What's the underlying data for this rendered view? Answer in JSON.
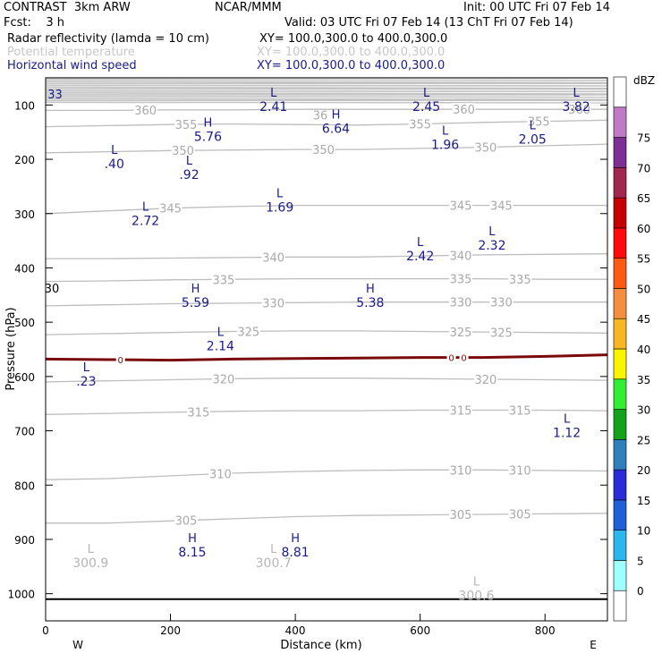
{
  "header": {
    "model": "CONTRAST  3km ARW",
    "org": "NCAR/MMM",
    "init": "Init: 00 UTC Fri 07 Feb 14",
    "fcst": "Fcst:    3 h",
    "valid": "Valid: 03 UTC Fri 07 Feb 14 (13 ChT Fri 07 Feb 14)",
    "fields": [
      {
        "name": "Radar reflectivity (lamda = 10 cm)",
        "xy": "XY= 100.0,300.0 to 400.0,300.0",
        "color": "#000000"
      },
      {
        "name": "Potential temperature",
        "xy": "XY= 100.0,300.0 to 400.0,300.0",
        "color": "#c8c8c8"
      },
      {
        "name": "Horizontal wind speed",
        "xy": "XY= 100.0,300.0 to 400.0,300.0",
        "color": "#1a1a8a"
      }
    ]
  },
  "chart_data": {
    "type": "cross-section",
    "xlabel": "Distance (km)",
    "ylabel": "Pressure (hPa)",
    "xlim": [
      0,
      900
    ],
    "ylim": [
      1050,
      50
    ],
    "xticks": [
      "0",
      "200",
      "400",
      "600",
      "800"
    ],
    "xtick_values": [
      0,
      200,
      400,
      600,
      800
    ],
    "yticks": [
      "100",
      "200",
      "300",
      "400",
      "500",
      "600",
      "700",
      "800",
      "900",
      "1000"
    ],
    "ytick_values": [
      100,
      200,
      300,
      400,
      500,
      600,
      700,
      800,
      900,
      1000
    ],
    "end_labels": {
      "left": "W",
      "right": "E"
    },
    "surface_pressure": 1010,
    "theta_contours": [
      {
        "level": 305,
        "p": [
          870,
          870,
          866,
          862,
          858,
          856,
          855,
          854,
          853,
          852
        ],
        "labels": [
          {
            "x": 225,
            "text": "305"
          },
          {
            "x": 665,
            "text": "305"
          },
          {
            "x": 760,
            "text": "305"
          }
        ]
      },
      {
        "level": 310,
        "p": [
          790,
          788,
          783,
          778,
          775,
          773,
          772,
          772,
          773,
          774
        ],
        "labels": [
          {
            "x": 280,
            "text": "310"
          },
          {
            "x": 665,
            "text": "310"
          },
          {
            "x": 760,
            "text": "310"
          }
        ]
      },
      {
        "level": 315,
        "p": [
          670,
          668,
          666,
          664,
          663,
          663,
          662,
          662,
          662,
          663
        ],
        "labels": [
          {
            "x": 245,
            "text": "315"
          },
          {
            "x": 665,
            "text": "315"
          },
          {
            "x": 760,
            "text": "315"
          }
        ]
      },
      {
        "level": 320,
        "p": [
          610,
          608,
          606,
          604,
          603,
          603,
          604,
          605,
          606,
          607
        ],
        "labels": [
          {
            "x": 285,
            "text": "320"
          },
          {
            "x": 705,
            "text": "320"
          }
        ]
      },
      {
        "level": 325,
        "p": [
          523,
          521,
          519,
          517,
          516,
          516,
          517,
          518,
          519,
          520
        ],
        "labels": [
          {
            "x": 325,
            "text": "325"
          },
          {
            "x": 665,
            "text": "325"
          },
          {
            "x": 730,
            "text": "325"
          }
        ]
      },
      {
        "level": 330,
        "p": [
          470,
          468,
          466,
          465,
          464,
          463,
          463,
          463,
          463,
          463
        ],
        "labels": [
          {
            "x": 365,
            "text": "330"
          },
          {
            "x": 665,
            "text": "330"
          },
          {
            "x": 730,
            "text": "330"
          }
        ]
      },
      {
        "level": 335,
        "p": [
          425,
          424,
          422,
          421,
          420,
          420,
          420,
          420,
          421,
          421
        ],
        "labels": [
          {
            "x": 285,
            "text": "335"
          },
          {
            "x": 665,
            "text": "335"
          },
          {
            "x": 760,
            "text": "335"
          }
        ]
      },
      {
        "level": 340,
        "p": [
          383,
          383,
          382,
          381,
          380,
          380,
          378,
          376,
          375,
          374
        ],
        "labels": [
          {
            "x": 365,
            "text": "340"
          },
          {
            "x": 665,
            "text": "340"
          }
        ]
      },
      {
        "level": 345,
        "p": [
          300,
          295,
          290,
          287,
          285,
          285,
          285,
          285,
          285,
          285
        ],
        "labels": [
          {
            "x": 200,
            "text": "345"
          },
          {
            "x": 665,
            "text": "345"
          },
          {
            "x": 730,
            "text": "345"
          }
        ]
      },
      {
        "level": 350,
        "p": [
          188,
          186,
          184,
          183,
          182,
          182,
          180,
          178,
          175,
          172
        ],
        "labels": [
          {
            "x": 220,
            "text": "350"
          },
          {
            "x": 445,
            "text": "350"
          },
          {
            "x": 705,
            "text": "350"
          }
        ]
      },
      {
        "level": 355,
        "p": [
          140,
          138,
          136,
          135,
          136,
          137,
          135,
          132,
          130,
          128
        ],
        "labels": [
          {
            "x": 225,
            "text": "355"
          },
          {
            "x": 600,
            "text": "355"
          },
          {
            "x": 790,
            "text": "355"
          }
        ]
      },
      {
        "level": 360,
        "p": [
          110,
          110,
          109,
          109,
          108,
          108,
          108,
          108,
          108,
          108
        ],
        "labels": [
          {
            "x": 160,
            "text": "360"
          },
          {
            "x": 670,
            "text": "360"
          },
          {
            "x": 855,
            "text": "360"
          }
        ]
      }
    ],
    "contour_x": [
      0,
      100,
      200,
      300,
      400,
      500,
      600,
      700,
      800,
      900
    ],
    "freezing_level": {
      "p": [
        568,
        569,
        570,
        568,
        567,
        566,
        565,
        565,
        563,
        560
      ],
      "labels": [
        {
          "x": 120,
          "text": "0"
        },
        {
          "x": 650,
          "text": "0"
        },
        {
          "x": 670,
          "text": "0"
        }
      ]
    },
    "stratosphere_band": {
      "p_top": 50,
      "p_bottom": 95
    },
    "wind_extrema": [
      {
        "type": "L",
        "value": "2.41",
        "x": 365,
        "p": 85
      },
      {
        "type": "L",
        "value": "2.45",
        "x": 610,
        "p": 85
      },
      {
        "type": "L",
        "value": "3.82",
        "x": 850,
        "p": 85
      },
      {
        "type": "H",
        "value": "5.76",
        "x": 260,
        "p": 140
      },
      {
        "type": "H",
        "value": "6.64",
        "x": 465,
        "p": 125
      },
      {
        "type": "L",
        "value": "1.96",
        "x": 640,
        "p": 155
      },
      {
        "type": "L",
        "value": "2.05",
        "x": 780,
        "p": 145
      },
      {
        "type": "L",
        "value": ".40",
        "x": 110,
        "p": 190
      },
      {
        "type": "L",
        "value": ".92",
        "x": 230,
        "p": 210
      },
      {
        "type": "L",
        "value": "1.69",
        "x": 375,
        "p": 270
      },
      {
        "type": "L",
        "value": "2.72",
        "x": 160,
        "p": 295
      },
      {
        "type": "L",
        "value": "2.32",
        "x": 715,
        "p": 340
      },
      {
        "type": "L",
        "value": "2.42",
        "x": 600,
        "p": 360
      },
      {
        "type": "H",
        "value": "5.59",
        "x": 240,
        "p": 445
      },
      {
        "type": "H",
        "value": "5.38",
        "x": 520,
        "p": 445
      },
      {
        "type": "L",
        "value": "2.14",
        "x": 280,
        "p": 525
      },
      {
        "type": "L",
        "value": ".23",
        "x": 65,
        "p": 590
      },
      {
        "type": "L",
        "value": "1.12",
        "x": 835,
        "p": 685
      },
      {
        "type": "H",
        "value": "8.15",
        "x": 235,
        "p": 905
      },
      {
        "type": "H",
        "value": "8.81",
        "x": 400,
        "p": 905
      }
    ],
    "theta_extrema": [
      {
        "type": "L",
        "value": "300.9",
        "x": 72,
        "p": 925
      },
      {
        "type": "L",
        "value": "300.7",
        "x": 365,
        "p": 925
      },
      {
        "type": "L",
        "value": "300.6",
        "x": 690,
        "p": 985
      }
    ],
    "edge_labels": [
      {
        "text": "33",
        "x": 15,
        "p": 88,
        "color": "#1a1a8a"
      },
      {
        "text": "30",
        "x": 10,
        "p": 445,
        "color": "#000000"
      },
      {
        "text": "36",
        "x": 440,
        "p": 127,
        "color": "#aaaaaa"
      }
    ],
    "colorbar": {
      "unit": "dBZ",
      "levels": [
        "0",
        "5",
        "10",
        "15",
        "20",
        "25",
        "30",
        "35",
        "40",
        "45",
        "50",
        "55",
        "60",
        "65",
        "70",
        "75"
      ],
      "colors": [
        "#ffffff",
        "#9ffeff",
        "#2bb6ec",
        "#1f5fd8",
        "#2b2bd8",
        "#2f80ba",
        "#12a31b",
        "#33ee33",
        "#f9f400",
        "#f8b623",
        "#f48e41",
        "#ff5a12",
        "#ff0a0a",
        "#c60000",
        "#a0284f",
        "#7e2f96",
        "#c07ac8",
        "#ffffff"
      ]
    }
  }
}
